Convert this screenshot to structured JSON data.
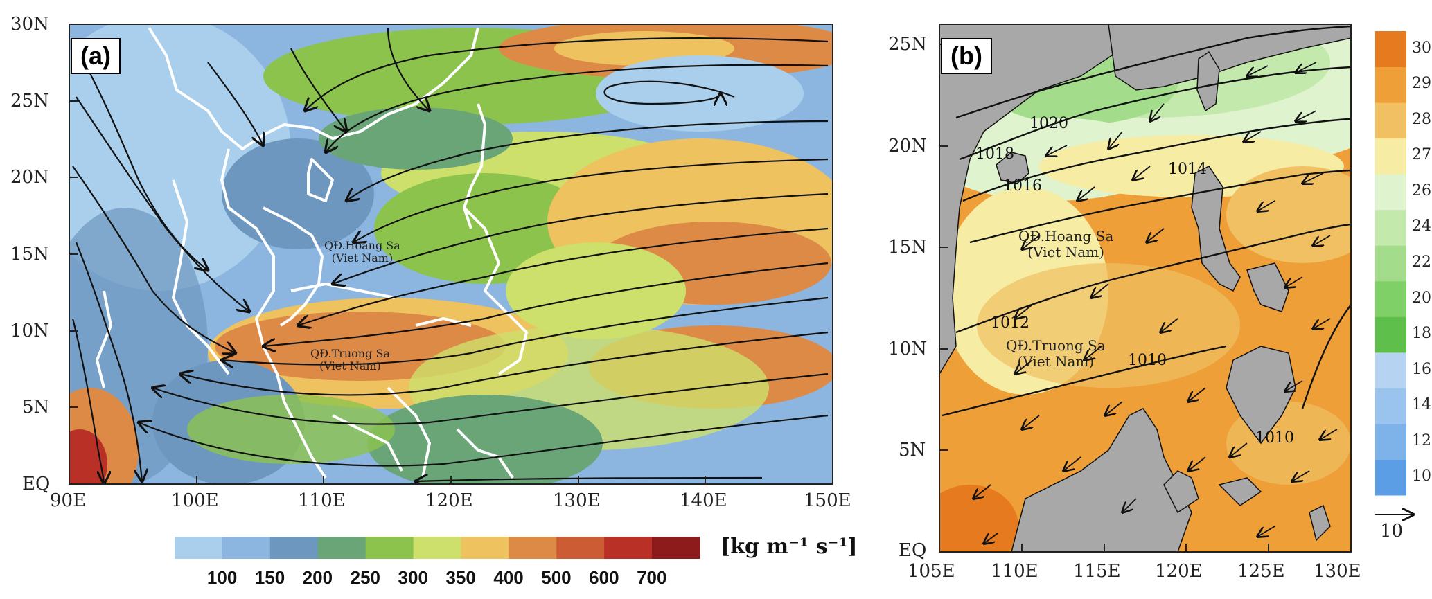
{
  "panel_a": {
    "tag": "(a)",
    "y_ticks": [
      "30N",
      "25N",
      "20N",
      "15N",
      "10N",
      "5N",
      "EQ"
    ],
    "x_ticks": [
      "90E",
      "100E",
      "110E",
      "120E",
      "130E",
      "140E",
      "150E"
    ],
    "annotations": {
      "hoang_sa_1": "QĐ.Hoang Sa",
      "hoang_sa_2": "(Viet Nam)",
      "truong_sa_1": "QĐ.Truong Sa",
      "truong_sa_2": "(Viet Nam)"
    },
    "colorbar": {
      "colors": [
        "#a9cfec",
        "#8cb6e0",
        "#6e97bf",
        "#69a577",
        "#8cc34d",
        "#cde06b",
        "#eec25e",
        "#de8a47",
        "#cb5c34",
        "#b83026",
        "#8e1b1b"
      ],
      "labels": [
        "100",
        "150",
        "200",
        "250",
        "300",
        "350",
        "400",
        "500",
        "600",
        "700"
      ],
      "unit": "[kg m⁻¹ s⁻¹]"
    }
  },
  "panel_b": {
    "tag": "(b)",
    "y_ticks": [
      "25N",
      "20N",
      "15N",
      "10N",
      "5N",
      "EQ"
    ],
    "x_ticks": [
      "105E",
      "110E",
      "115E",
      "120E",
      "125E",
      "130E"
    ],
    "annotations": {
      "hoang_sa_1": "QĐ.Hoang Sa",
      "hoang_sa_2": "(Viet Nam)",
      "truong_sa_1": "QĐ.Truong Sa",
      "truong_sa_2": "(Viet Nam)"
    },
    "isobar_labels": [
      "1020",
      "1018",
      "1016",
      "1014",
      "1012",
      "1010",
      "1010"
    ],
    "colorbar": {
      "colors": [
        "#5b9ee6",
        "#7eb3ea",
        "#9ac4ee",
        "#b6d4f1",
        "#5ec04a",
        "#7fd066",
        "#a3dd8b",
        "#c3e9ad",
        "#e0f3cf",
        "#f6eca4",
        "#f0c062",
        "#ee9f38",
        "#e57a1f"
      ],
      "labels": [
        "10",
        "12",
        "14",
        "16",
        "18",
        "20",
        "22",
        "24",
        "26",
        "27",
        "28",
        "29",
        "30"
      ],
      "vector_ref": "10"
    }
  }
}
